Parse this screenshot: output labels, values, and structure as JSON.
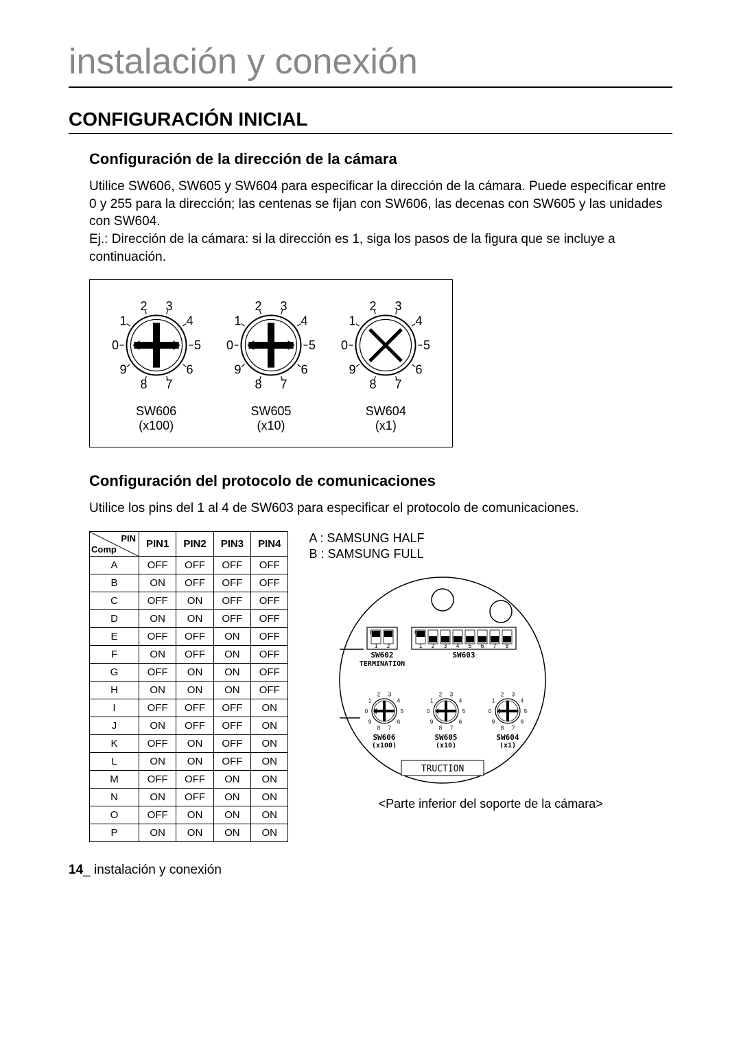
{
  "page_title": "instalación y conexión",
  "section_title": "CONFIGURACIÓN INICIAL",
  "sub1": {
    "title": "Configuración de la dirección de la cámara",
    "body": "Utilice SW606, SW605 y SW604 para especificar la dirección de la cámara. Puede especificar entre 0 y 255 para la dirección; las centenas se fijan con SW606, las decenas con SW605 y las unidades con SW604.\nEj.: Dirección de la cámara: si la dirección es 1, siga los pasos de la figura que se incluye a continuación."
  },
  "dials": [
    {
      "name": "SW606",
      "mult": "(x100)",
      "selected": 0,
      "type": "phillips"
    },
    {
      "name": "SW605",
      "mult": "(x10)",
      "selected": 0,
      "type": "phillips"
    },
    {
      "name": "SW604",
      "mult": "(x1)",
      "selected": 1,
      "type": "cross"
    }
  ],
  "dial_style": {
    "numbers": [
      "0",
      "1",
      "2",
      "3",
      "4",
      "5",
      "6",
      "7",
      "8",
      "9"
    ],
    "outer_stroke": "#000000",
    "fill": "#ffffff",
    "num_fontsize": 18
  },
  "sub2": {
    "title": "Configuración del protocolo de comunicaciones",
    "body": "Utilice los pins del 1 al 4 de SW603 para especificar el protocolo de comunicaciones."
  },
  "protocol_table": {
    "corner_top": "PIN",
    "corner_bottom": "Comp",
    "columns": [
      "PIN1",
      "PIN2",
      "PIN3",
      "PIN4"
    ],
    "rows": [
      [
        "A",
        "OFF",
        "OFF",
        "OFF",
        "OFF"
      ],
      [
        "B",
        "ON",
        "OFF",
        "OFF",
        "OFF"
      ],
      [
        "C",
        "OFF",
        "ON",
        "OFF",
        "OFF"
      ],
      [
        "D",
        "ON",
        "ON",
        "OFF",
        "OFF"
      ],
      [
        "E",
        "OFF",
        "OFF",
        "ON",
        "OFF"
      ],
      [
        "F",
        "ON",
        "OFF",
        "ON",
        "OFF"
      ],
      [
        "G",
        "OFF",
        "ON",
        "ON",
        "OFF"
      ],
      [
        "H",
        "ON",
        "ON",
        "ON",
        "OFF"
      ],
      [
        "I",
        "OFF",
        "OFF",
        "OFF",
        "ON"
      ],
      [
        "J",
        "ON",
        "OFF",
        "OFF",
        "ON"
      ],
      [
        "K",
        "OFF",
        "ON",
        "OFF",
        "ON"
      ],
      [
        "L",
        "ON",
        "ON",
        "OFF",
        "ON"
      ],
      [
        "M",
        "OFF",
        "OFF",
        "ON",
        "ON"
      ],
      [
        "N",
        "ON",
        "OFF",
        "ON",
        "ON"
      ],
      [
        "O",
        "OFF",
        "ON",
        "ON",
        "ON"
      ],
      [
        "P",
        "ON",
        "ON",
        "ON",
        "ON"
      ]
    ]
  },
  "legend": {
    "a": "A : SAMSUNG HALF",
    "b": "B : SAMSUNG FULL"
  },
  "bottom_diagram": {
    "sw602": {
      "label": "SW602",
      "sublabel": "TERMINATION",
      "pins": 2,
      "pin_labels": [
        "1",
        "2"
      ],
      "state": [
        "ON",
        "ON"
      ],
      "on_label": "ON"
    },
    "sw603": {
      "label": "SW603",
      "pins": 8,
      "pin_labels": [
        "1",
        "2",
        "3",
        "4",
        "5",
        "6",
        "7",
        "8"
      ],
      "state": [
        "ON",
        "OFF",
        "OFF",
        "OFF",
        "OFF",
        "OFF",
        "OFF",
        "OFF"
      ],
      "on_label": "ON"
    },
    "rotary": [
      {
        "name": "SW606",
        "mult": "(x100)"
      },
      {
        "name": "SW605",
        "mult": "(x10)"
      },
      {
        "name": "SW604",
        "mult": "(x1)"
      }
    ],
    "truction_label": "TRUCTION",
    "caption": "<Parte inferior del soporte de la cámara>"
  },
  "footer": {
    "page_num": "14",
    "sep": "_",
    "text": "instalación y conexión"
  },
  "colors": {
    "text": "#000000",
    "title_gray": "#888888",
    "border": "#000000",
    "bg": "#ffffff"
  }
}
